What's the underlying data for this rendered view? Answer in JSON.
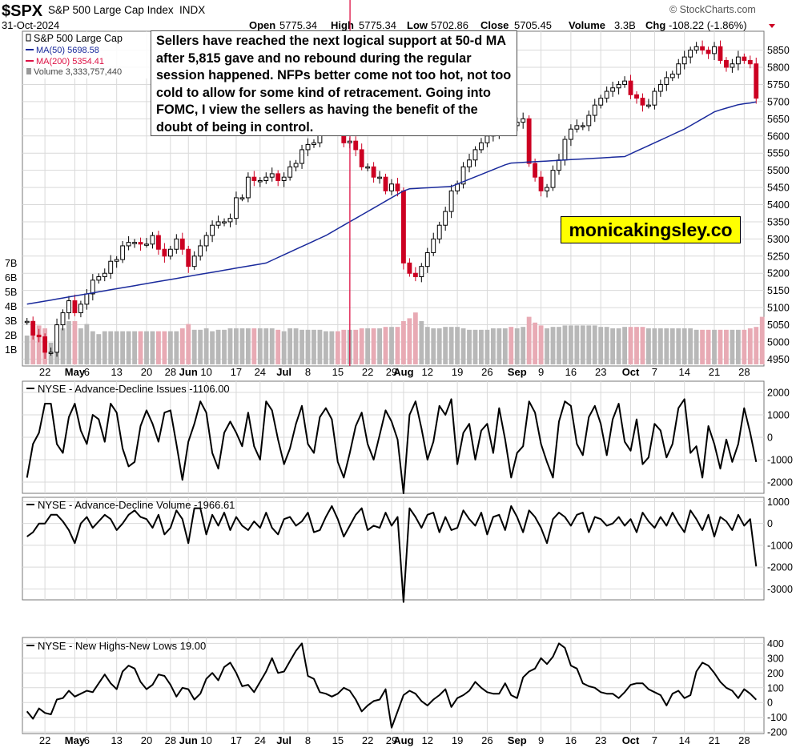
{
  "header": {
    "symbol": "$SPX",
    "name": "S&P 500 Large Cap Index",
    "exchange": "INDX",
    "date": "31-Oct-2024",
    "source": "© StockCharts.com",
    "open_label": "Open",
    "open": "5775.34",
    "high_label": "High",
    "high": "5775.34",
    "low_label": "Low",
    "low": "5702.86",
    "close_label": "Close",
    "close": "5705.45",
    "volume_label": "Volume",
    "volume": "3.3B",
    "chg_label": "Chg",
    "chg": "-108.22 (-1.86%)"
  },
  "legend": {
    "price_label": "S&P 500 Large Cap",
    "ma50_label": "MA(50) 5698.58",
    "ma200_label": "MA(200) 5354.41",
    "volume_label": "Volume 3,333,757,440"
  },
  "annotation": {
    "text": "Sellers have reached the next logical support at 50-d MA after 5,815 gave and no rebound during the regular session happened. NFPs better come not too hot, not too cold to allow for some kind of retracement. Going into FOMC, I view the sellers as having the benefit of the doubt of being in control."
  },
  "watermark": "monicakingsley.co",
  "colors": {
    "up": "#000000",
    "down": "#cc0022",
    "ma50": "#1a2a9c",
    "ma200": "#dd1144",
    "vol_up": "#b8b8b8",
    "vol_down": "#e8aab4",
    "grid": "#d9d9d9",
    "line": "#000000"
  },
  "x_axis": {
    "labels": [
      {
        "i": 3,
        "text": "22",
        "bold": false
      },
      {
        "i": 8,
        "text": "May",
        "bold": true
      },
      {
        "i": 10,
        "text": "6",
        "bold": false
      },
      {
        "i": 15,
        "text": "13",
        "bold": false
      },
      {
        "i": 20,
        "text": "20",
        "bold": false
      },
      {
        "i": 24,
        "text": "28",
        "bold": false
      },
      {
        "i": 27,
        "text": "Jun",
        "bold": true
      },
      {
        "i": 30,
        "text": "10",
        "bold": false
      },
      {
        "i": 35,
        "text": "17",
        "bold": false
      },
      {
        "i": 39,
        "text": "24",
        "bold": false
      },
      {
        "i": 43,
        "text": "Jul",
        "bold": true
      },
      {
        "i": 47,
        "text": "8",
        "bold": false
      },
      {
        "i": 52,
        "text": "15",
        "bold": false
      },
      {
        "i": 57,
        "text": "22",
        "bold": false
      },
      {
        "i": 61,
        "text": "29",
        "bold": false
      },
      {
        "i": 63,
        "text": "Aug",
        "bold": true
      },
      {
        "i": 67,
        "text": "12",
        "bold": false
      },
      {
        "i": 72,
        "text": "19",
        "bold": false
      },
      {
        "i": 77,
        "text": "26",
        "bold": false
      },
      {
        "i": 82,
        "text": "Sep",
        "bold": true
      },
      {
        "i": 86,
        "text": "9",
        "bold": false
      },
      {
        "i": 91,
        "text": "16",
        "bold": false
      },
      {
        "i": 96,
        "text": "23",
        "bold": false
      },
      {
        "i": 101,
        "text": "Oct",
        "bold": true
      },
      {
        "i": 105,
        "text": "7",
        "bold": false
      },
      {
        "i": 110,
        "text": "14",
        "bold": false
      },
      {
        "i": 115,
        "text": "21",
        "bold": false
      },
      {
        "i": 120,
        "text": "28",
        "bold": false
      }
    ]
  },
  "chart_data": [
    {
      "type": "candlestick",
      "title": "$SPX S&P 500 Large Cap Index INDX",
      "ylim": [
        4930,
        5905
      ],
      "y_ticks": [
        4950,
        5000,
        5050,
        5100,
        5150,
        5200,
        5250,
        5300,
        5350,
        5400,
        5450,
        5500,
        5550,
        5600,
        5650,
        5700,
        5750,
        5800,
        5850
      ],
      "close": [
        5060,
        5020,
        5015,
        4970,
        4970,
        5050,
        5085,
        5120,
        5085,
        5110,
        5140,
        5180,
        5190,
        5200,
        5235,
        5240,
        5280,
        5290,
        5290,
        5285,
        5285,
        5310,
        5270,
        5250,
        5270,
        5300,
        5270,
        5220,
        5250,
        5280,
        5310,
        5340,
        5350,
        5350,
        5360,
        5420,
        5420,
        5480,
        5470,
        5470,
        5480,
        5490,
        5470,
        5480,
        5510,
        5520,
        5560,
        5575,
        5580,
        5620,
        5630,
        5630,
        5610,
        5580,
        5585,
        5560,
        5510,
        5510,
        5480,
        5480,
        5440,
        5460,
        5440,
        5230,
        5200,
        5190,
        5220,
        5260,
        5300,
        5340,
        5380,
        5440,
        5460,
        5510,
        5530,
        5560,
        5580,
        5600,
        5610,
        5620,
        5640,
        5630,
        5640,
        5650,
        5520,
        5480,
        5440,
        5450,
        5500,
        5530,
        5590,
        5620,
        5630,
        5630,
        5660,
        5690,
        5710,
        5730,
        5740,
        5750,
        5760,
        5720,
        5710,
        5690,
        5690,
        5730,
        5750,
        5770,
        5780,
        5810,
        5830,
        5850,
        5860,
        5850,
        5840,
        5860,
        5820,
        5800,
        5810,
        5830,
        5820,
        5810,
        5710
      ],
      "ma50": [
        5110,
        5113,
        5116,
        5119,
        5122,
        5125,
        5128,
        5131,
        5134,
        5137,
        5140,
        5143,
        5146,
        5149,
        5152,
        5155,
        5158,
        5161,
        5164,
        5167,
        5170,
        5173,
        5176,
        5179,
        5182,
        5185,
        5188,
        5191,
        5194,
        5197,
        5200,
        5203,
        5206,
        5209,
        5212,
        5215,
        5218,
        5221,
        5224,
        5227,
        5230,
        5238,
        5246,
        5254,
        5262,
        5270,
        5278,
        5286,
        5294,
        5302,
        5310,
        5320,
        5330,
        5340,
        5350,
        5360,
        5370,
        5380,
        5390,
        5400,
        5410,
        5420,
        5430,
        5440,
        5446,
        5447,
        5448,
        5449,
        5450,
        5451,
        5452,
        5453,
        5460,
        5467,
        5474,
        5481,
        5488,
        5495,
        5502,
        5509,
        5516,
        5521,
        5522,
        5523,
        5524,
        5525,
        5526,
        5527,
        5528,
        5529,
        5530,
        5531,
        5532,
        5533,
        5534,
        5535,
        5536,
        5537,
        5538,
        5539,
        5540,
        5548,
        5556,
        5564,
        5572,
        5580,
        5588,
        5596,
        5604,
        5612,
        5620,
        5630,
        5640,
        5650,
        5660,
        5670,
        5676,
        5681,
        5686,
        5691,
        5694,
        5696,
        5699
      ],
      "ma200_label": "MA(200) 5354.41",
      "volume_b": [
        2.0,
        2.3,
        2.7,
        2.5,
        1.5,
        1.5,
        2.5,
        3.0,
        3.0,
        2.5,
        2.8,
        2.3,
        2.1,
        2.3,
        2.3,
        2.3,
        2.3,
        2.3,
        2.3,
        2.3,
        2.3,
        2.3,
        2.3,
        2.3,
        2.3,
        2.3,
        2.5,
        2.8,
        2.4,
        2.4,
        2.5,
        2.3,
        2.4,
        2.4,
        2.5,
        2.5,
        2.5,
        2.5,
        2.5,
        2.5,
        2.5,
        2.5,
        2.4,
        2.3,
        2.5,
        2.5,
        2.4,
        2.4,
        2.4,
        2.4,
        2.3,
        2.3,
        2.3,
        2.4,
        2.4,
        2.4,
        2.5,
        2.5,
        2.5,
        2.5,
        2.6,
        2.6,
        2.6,
        3.0,
        3.2,
        3.6,
        3.0,
        2.6,
        2.5,
        2.5,
        2.6,
        2.6,
        2.6,
        2.5,
        2.4,
        2.4,
        2.4,
        2.4,
        2.5,
        2.5,
        2.5,
        2.6,
        2.5,
        2.6,
        3.3,
        2.9,
        2.7,
        2.5,
        2.6,
        2.6,
        2.7,
        2.7,
        2.7,
        2.7,
        2.7,
        2.7,
        2.6,
        2.6,
        2.5,
        2.5,
        2.6,
        2.6,
        2.6,
        2.6,
        2.5,
        2.5,
        2.5,
        2.5,
        2.5,
        2.5,
        2.5,
        2.5,
        2.4,
        2.4,
        2.4,
        2.4,
        2.4,
        2.4,
        2.4,
        2.4,
        2.4,
        2.5,
        2.6,
        3.3
      ],
      "volume_ticks": [
        "1B",
        "2B",
        "3B",
        "4B",
        "5B",
        "6B",
        "7B"
      ]
    },
    {
      "type": "line",
      "title": "NYSE - Advance-Decline Issues -1106.00",
      "ylim": [
        -2500,
        2500
      ],
      "y_ticks": [
        -2000,
        -1000,
        0,
        1000,
        2000
      ],
      "values": [
        -1800,
        -300,
        200,
        1500,
        1500,
        -300,
        -700,
        900,
        1500,
        300,
        -300,
        1000,
        800,
        -200,
        1500,
        1100,
        -500,
        -1300,
        -1100,
        500,
        1200,
        600,
        -200,
        1100,
        1200,
        -300,
        -1900,
        -200,
        600,
        1600,
        1100,
        -700,
        -1400,
        200,
        700,
        200,
        -400,
        1100,
        -400,
        -1000,
        1600,
        1200,
        -100,
        -1200,
        -500,
        600,
        1400,
        -300,
        -700,
        900,
        1300,
        800,
        -1100,
        -1800,
        -700,
        500,
        1100,
        -300,
        -1000,
        100,
        1200,
        700,
        -100,
        -2500,
        1000,
        1600,
        400,
        -1000,
        -200,
        1400,
        1000,
        1700,
        -1200,
        200,
        600,
        -1000,
        300,
        600,
        -700,
        1300,
        -100,
        -1800,
        -700,
        -400,
        1600,
        1100,
        -300,
        -1100,
        -1800,
        700,
        1600,
        1400,
        -300,
        -800,
        900,
        1400,
        600,
        -800,
        800,
        1500,
        -200,
        -600,
        800,
        -1200,
        -900,
        600,
        300,
        -900,
        -300,
        1300,
        1700,
        -700,
        -400,
        -1800,
        500,
        -300,
        -1400,
        -100,
        -1100,
        -300,
        1300,
        200,
        -1100
      ],
      "current": -1106.0
    },
    {
      "type": "line",
      "title": "NYSE - Advance-Decline Volume -1966.61",
      "ylim": [
        -3500,
        1200
      ],
      "y_ticks": [
        -3000,
        -2000,
        -1000,
        0,
        1000
      ],
      "values": [
        -600,
        -400,
        0,
        0,
        400,
        400,
        100,
        -300,
        -900,
        0,
        300,
        -200,
        100,
        400,
        200,
        -300,
        0,
        400,
        600,
        300,
        200,
        -200,
        400,
        -500,
        -200,
        600,
        200,
        -900,
        700,
        700,
        -500,
        400,
        -100,
        500,
        -300,
        300,
        -100,
        -300,
        100,
        -200,
        500,
        -200,
        -500,
        200,
        300,
        -100,
        100,
        500,
        -400,
        -300,
        300,
        800,
        200,
        -600,
        -100,
        400,
        700,
        -300,
        -100,
        -200,
        500,
        -100,
        300,
        -3600,
        700,
        300,
        -200,
        400,
        500,
        -400,
        300,
        -300,
        -200,
        600,
        200,
        -100,
        500,
        -500,
        300,
        400,
        -300,
        800,
        300,
        -400,
        600,
        300,
        -200,
        -900,
        200,
        500,
        300,
        -100,
        400,
        500,
        -400,
        300,
        200,
        -100,
        0,
        300,
        -100,
        200,
        -400,
        500,
        100,
        -200,
        300,
        -100,
        500,
        0,
        -400,
        600,
        200,
        -300,
        400,
        -600,
        300,
        100,
        -300,
        400,
        -100,
        200,
        -1966
      ]
    },
    {
      "type": "line",
      "title": "NYSE - New Highs-New Lows 19.00",
      "ylim": [
        -210,
        440
      ],
      "y_ticks": [
        -200,
        -100,
        0,
        100,
        200,
        300,
        400
      ],
      "values": [
        -60,
        -110,
        -40,
        -70,
        -80,
        20,
        30,
        80,
        40,
        60,
        80,
        70,
        130,
        190,
        130,
        90,
        210,
        250,
        230,
        140,
        90,
        120,
        190,
        180,
        120,
        40,
        100,
        90,
        20,
        60,
        160,
        200,
        150,
        240,
        270,
        200,
        110,
        120,
        70,
        140,
        210,
        300,
        200,
        210,
        280,
        350,
        400,
        180,
        160,
        70,
        60,
        40,
        60,
        100,
        80,
        20,
        -60,
        -20,
        10,
        20,
        90,
        -170,
        -60,
        50,
        80,
        60,
        10,
        -20,
        20,
        50,
        90,
        -30,
        30,
        50,
        80,
        140,
        100,
        70,
        60,
        60,
        130,
        50,
        30,
        170,
        210,
        230,
        300,
        260,
        310,
        400,
        370,
        250,
        230,
        130,
        110,
        100,
        70,
        60,
        60,
        30,
        70,
        120,
        130,
        130,
        90,
        70,
        50,
        -20,
        60,
        80,
        30,
        50,
        210,
        270,
        250,
        200,
        140,
        100,
        80,
        30,
        90,
        60,
        19
      ]
    }
  ]
}
